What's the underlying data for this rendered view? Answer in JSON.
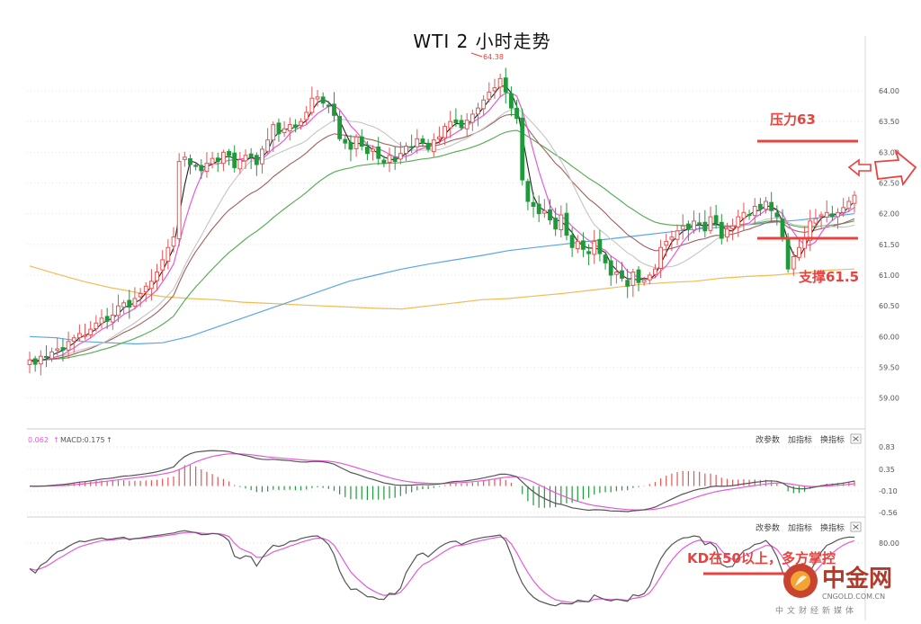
{
  "title": "WTI 2 小时走势",
  "colors": {
    "up": "#e25555",
    "down": "#1f9a3a",
    "annot_red": "#e8433f",
    "ma5": "#222222",
    "ma10": "#e65ad8",
    "ma20": "#c4c4c4",
    "ma30": "#a0605a",
    "ma60": "#5cae5a",
    "ma120": "#5aa6e6",
    "ma250": "#f2bb55",
    "macd_dif": "#555555",
    "macd_dea": "#e65ad8",
    "kd_k": "#555555",
    "kd_d": "#e65ad8"
  },
  "main_panel": {
    "y_ticks": [
      "64.00",
      "63.50",
      "63.00",
      "62.50",
      "62.00",
      "61.50",
      "61.00",
      "60.50",
      "60.00",
      "59.50",
      "59.00"
    ],
    "ylim": [
      58.6,
      64.6
    ],
    "high_marker": "64.38",
    "annotations": {
      "resistance_label": "压力63",
      "resistance_value": 63.0,
      "support_label": "支撑61.5",
      "support_value": 61.5
    }
  },
  "macd_panel": {
    "readout_prefix": "0.062",
    "readout_label": "MACD:0.175",
    "y_ticks": [
      "0.83",
      "0.35",
      "-0.10",
      "-0.56"
    ],
    "ylim": [
      -0.56,
      0.83
    ],
    "buttons": [
      "改参数",
      "加指标",
      "换指标"
    ]
  },
  "kd_panel": {
    "y_ticks": [
      "80.00"
    ],
    "ylim": [
      0,
      100
    ],
    "annotation": "KD在50以上，多方掌控",
    "buttons": [
      "改参数",
      "加指标",
      "换指标"
    ]
  },
  "watermark": {
    "brand": "中金网",
    "domain": "CNGOLD.COM.CN",
    "tagline": "中文财经新媒体"
  },
  "chart_data": {
    "type": "candlestick",
    "title": "WTI 2 小时走势",
    "ylim": [
      58.6,
      64.6
    ],
    "closes": [
      59.62,
      59.55,
      59.68,
      59.66,
      59.75,
      59.8,
      59.78,
      59.92,
      59.98,
      60.05,
      60.02,
      60.12,
      60.22,
      60.3,
      60.25,
      60.35,
      60.5,
      60.55,
      60.48,
      60.62,
      60.7,
      60.82,
      60.9,
      61.05,
      61.25,
      61.45,
      61.62,
      62.85,
      62.92,
      62.8,
      62.78,
      62.7,
      62.82,
      62.9,
      62.85,
      63.0,
      62.95,
      62.75,
      62.88,
      62.95,
      62.92,
      62.8,
      63.05,
      63.2,
      63.45,
      63.3,
      63.38,
      63.45,
      63.4,
      63.5,
      63.65,
      63.88,
      63.9,
      63.8,
      63.75,
      63.6,
      63.22,
      63.15,
      63.05,
      63.25,
      63.1,
      62.98,
      63.05,
      62.9,
      62.82,
      62.95,
      62.85,
      62.98,
      63.1,
      63.08,
      63.22,
      63.15,
      63.05,
      63.2,
      63.25,
      63.42,
      63.5,
      63.48,
      63.4,
      63.52,
      63.62,
      63.72,
      63.85,
      63.98,
      64.05,
      64.2,
      63.98,
      63.72,
      63.55,
      62.55,
      62.2,
      62.12,
      62.0,
      62.05,
      61.9,
      61.75,
      61.98,
      61.65,
      61.45,
      61.55,
      61.42,
      61.35,
      61.55,
      61.35,
      61.2,
      61.0,
      61.05,
      60.95,
      60.82,
      61.05,
      60.88,
      60.92,
      61.0,
      61.1,
      61.45,
      61.55,
      61.62,
      61.72,
      61.8,
      61.75,
      61.88,
      61.82,
      61.72,
      61.95,
      61.85,
      61.6,
      61.75,
      61.8,
      61.95,
      62.02,
      61.98,
      62.12,
      62.08,
      62.2,
      62.05,
      61.95,
      61.6,
      61.1,
      61.3,
      61.45,
      61.6,
      61.88,
      61.92,
      61.98,
      62.02,
      61.95,
      62.02,
      62.1,
      62.2,
      62.3
    ],
    "series": [
      {
        "name": "MA5",
        "type": "line"
      },
      {
        "name": "MA10",
        "type": "line"
      },
      {
        "name": "MA20",
        "type": "line"
      },
      {
        "name": "MA30",
        "type": "line"
      },
      {
        "name": "MA60",
        "type": "line"
      },
      {
        "name": "MA120",
        "type": "line",
        "values": [
          60.0,
          59.98,
          59.92,
          59.9,
          59.88,
          59.9,
          60.0,
          60.15,
          60.3,
          60.45,
          60.6,
          60.75,
          60.9,
          61.0,
          61.1,
          61.18,
          61.25,
          61.32,
          61.4,
          61.45,
          61.5,
          61.55,
          61.6,
          61.65,
          61.7,
          61.75,
          61.78,
          61.82,
          61.86,
          61.9,
          61.95,
          62.0
        ]
      },
      {
        "name": "MA250",
        "type": "line",
        "values": [
          61.15,
          61.02,
          60.9,
          60.8,
          60.72,
          60.65,
          60.62,
          60.6,
          60.56,
          60.54,
          60.52,
          60.5,
          60.48,
          60.46,
          60.45,
          60.5,
          60.55,
          60.6,
          60.62,
          60.66,
          60.7,
          60.75,
          60.8,
          60.85,
          60.88,
          60.9,
          60.95,
          60.98,
          61.0,
          61.04,
          61.08,
          61.1
        ]
      }
    ],
    "annotations": [
      {
        "text": "压力63",
        "value": 63.0
      },
      {
        "text": "支撑61.5",
        "value": 61.5
      },
      {
        "text": "64.38",
        "value": 64.38
      }
    ]
  }
}
